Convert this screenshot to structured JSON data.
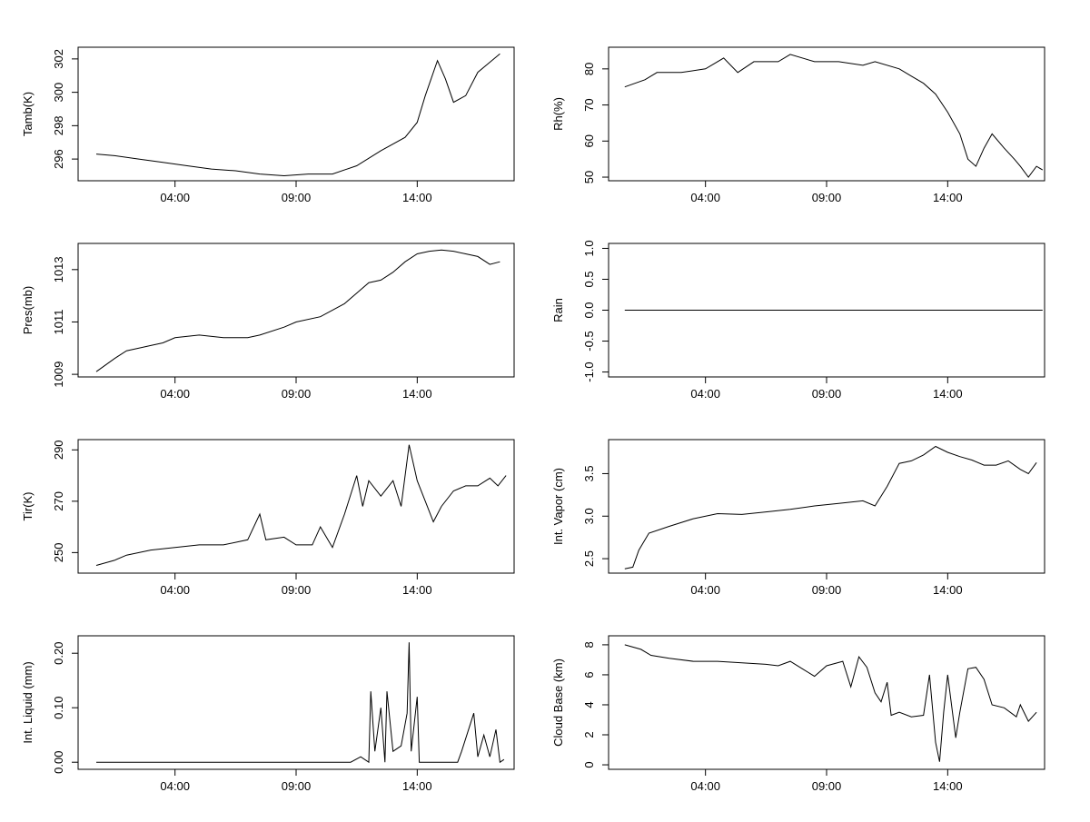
{
  "chart_data": [
    {
      "type": "line",
      "ylabel": "Tamb(K)",
      "xticks": [
        "04:00",
        "09:00",
        "14:00"
      ],
      "yticks": [
        296,
        298,
        300,
        302
      ],
      "xlim": [
        "00:00",
        "18:00"
      ],
      "ylim": [
        294.7,
        302.7
      ],
      "series": [
        {
          "points": [
            [
              "00:45",
              296.3
            ],
            [
              "01:30",
              296.2
            ],
            [
              "02:30",
              296.0
            ],
            [
              "03:30",
              295.8
            ],
            [
              "04:30",
              295.6
            ],
            [
              "05:30",
              295.4
            ],
            [
              "06:30",
              295.3
            ],
            [
              "07:30",
              295.1
            ],
            [
              "08:30",
              295.0
            ],
            [
              "09:30",
              295.1
            ],
            [
              "10:30",
              295.1
            ],
            [
              "11:30",
              295.6
            ],
            [
              "12:30",
              296.5
            ],
            [
              "13:30",
              297.3
            ],
            [
              "14:00",
              298.2
            ],
            [
              "14:20",
              299.8
            ],
            [
              "14:50",
              301.9
            ],
            [
              "15:10",
              300.8
            ],
            [
              "15:30",
              299.4
            ],
            [
              "16:00",
              299.8
            ],
            [
              "16:30",
              301.2
            ],
            [
              "17:00",
              301.8
            ],
            [
              "17:25",
              302.3
            ]
          ]
        }
      ]
    },
    {
      "type": "line",
      "ylabel": "Rh(%)",
      "xticks": [
        "04:00",
        "09:00",
        "14:00"
      ],
      "yticks": [
        50,
        60,
        70,
        80
      ],
      "xlim": [
        "00:00",
        "18:00"
      ],
      "ylim": [
        49,
        86
      ],
      "series": [
        {
          "points": [
            [
              "00:40",
              75
            ],
            [
              "01:30",
              77
            ],
            [
              "02:00",
              79
            ],
            [
              "03:00",
              79
            ],
            [
              "04:00",
              80
            ],
            [
              "04:45",
              83
            ],
            [
              "05:20",
              79
            ],
            [
              "06:00",
              82
            ],
            [
              "07:00",
              82
            ],
            [
              "07:30",
              84
            ],
            [
              "08:30",
              82
            ],
            [
              "09:30",
              82
            ],
            [
              "10:30",
              81
            ],
            [
              "11:00",
              82
            ],
            [
              "12:00",
              80
            ],
            [
              "12:30",
              78
            ],
            [
              "13:00",
              76
            ],
            [
              "13:30",
              73
            ],
            [
              "14:00",
              68
            ],
            [
              "14:30",
              62
            ],
            [
              "14:50",
              55
            ],
            [
              "15:10",
              53
            ],
            [
              "15:30",
              58
            ],
            [
              "15:50",
              62
            ],
            [
              "16:20",
              58
            ],
            [
              "16:45",
              55
            ],
            [
              "17:00",
              53
            ],
            [
              "17:20",
              50
            ],
            [
              "17:40",
              53
            ],
            [
              "17:55",
              52
            ]
          ]
        }
      ]
    },
    {
      "type": "line",
      "ylabel": "Pres(mb)",
      "xticks": [
        "04:00",
        "09:00",
        "14:00"
      ],
      "yticks": [
        1009,
        1011,
        1013
      ],
      "xlim": [
        "00:00",
        "18:00"
      ],
      "ylim": [
        1008.9,
        1014.0
      ],
      "series": [
        {
          "points": [
            [
              "00:45",
              1009.1
            ],
            [
              "01:30",
              1009.6
            ],
            [
              "02:00",
              1009.9
            ],
            [
              "03:00",
              1010.1
            ],
            [
              "03:30",
              1010.2
            ],
            [
              "04:00",
              1010.4
            ],
            [
              "05:00",
              1010.5
            ],
            [
              "06:00",
              1010.4
            ],
            [
              "07:00",
              1010.4
            ],
            [
              "07:30",
              1010.5
            ],
            [
              "08:30",
              1010.8
            ],
            [
              "09:00",
              1011.0
            ],
            [
              "10:00",
              1011.2
            ],
            [
              "11:00",
              1011.7
            ],
            [
              "11:30",
              1012.1
            ],
            [
              "12:00",
              1012.5
            ],
            [
              "12:30",
              1012.6
            ],
            [
              "13:00",
              1012.9
            ],
            [
              "13:30",
              1013.3
            ],
            [
              "14:00",
              1013.6
            ],
            [
              "14:30",
              1013.7
            ],
            [
              "15:00",
              1013.75
            ],
            [
              "15:30",
              1013.7
            ],
            [
              "16:00",
              1013.6
            ],
            [
              "16:30",
              1013.5
            ],
            [
              "17:00",
              1013.2
            ],
            [
              "17:25",
              1013.3
            ]
          ]
        }
      ]
    },
    {
      "type": "line",
      "ylabel": "Rain",
      "xticks": [
        "04:00",
        "09:00",
        "14:00"
      ],
      "yticks": [
        -1.0,
        -0.5,
        0.0,
        0.5,
        1.0
      ],
      "ytick_labels": [
        "-1.0",
        "-0.5",
        "0.0",
        "0.5",
        "1.0"
      ],
      "xlim": [
        "00:00",
        "18:00"
      ],
      "ylim": [
        -1.08,
        1.08
      ],
      "series": [
        {
          "points": [
            [
              "00:40",
              0
            ],
            [
              "17:55",
              0
            ]
          ]
        }
      ]
    },
    {
      "type": "line",
      "ylabel": "Tir(K)",
      "xticks": [
        "04:00",
        "09:00",
        "14:00"
      ],
      "yticks": [
        250,
        270,
        290
      ],
      "xlim": [
        "00:00",
        "18:00"
      ],
      "ylim": [
        242,
        294
      ],
      "series": [
        {
          "points": [
            [
              "00:45",
              245
            ],
            [
              "01:30",
              247
            ],
            [
              "02:00",
              249
            ],
            [
              "03:00",
              251
            ],
            [
              "04:00",
              252
            ],
            [
              "05:00",
              253
            ],
            [
              "06:00",
              253
            ],
            [
              "07:00",
              255
            ],
            [
              "07:30",
              265
            ],
            [
              "07:45",
              255
            ],
            [
              "08:30",
              256
            ],
            [
              "09:00",
              253
            ],
            [
              "09:40",
              253
            ],
            [
              "10:00",
              260
            ],
            [
              "10:30",
              252
            ],
            [
              "11:00",
              265
            ],
            [
              "11:30",
              280
            ],
            [
              "11:45",
              268
            ],
            [
              "12:00",
              278
            ],
            [
              "12:30",
              272
            ],
            [
              "13:00",
              278
            ],
            [
              "13:20",
              268
            ],
            [
              "13:40",
              292
            ],
            [
              "14:00",
              278
            ],
            [
              "14:20",
              270
            ],
            [
              "14:40",
              262
            ],
            [
              "15:00",
              268
            ],
            [
              "15:30",
              274
            ],
            [
              "16:00",
              276
            ],
            [
              "16:30",
              276
            ],
            [
              "17:00",
              279
            ],
            [
              "17:20",
              276
            ],
            [
              "17:40",
              280
            ]
          ]
        }
      ]
    },
    {
      "type": "line",
      "ylabel": "Int. Vapor (cm)",
      "xticks": [
        "04:00",
        "09:00",
        "14:00"
      ],
      "yticks": [
        2.5,
        3.0,
        3.5
      ],
      "ytick_labels": [
        "2.5",
        "3.0",
        "3.5"
      ],
      "xlim": [
        "00:00",
        "18:00"
      ],
      "ylim": [
        2.33,
        3.9
      ],
      "series": [
        {
          "points": [
            [
              "00:40",
              2.38
            ],
            [
              "01:00",
              2.4
            ],
            [
              "01:15",
              2.6
            ],
            [
              "01:40",
              2.8
            ],
            [
              "02:30",
              2.88
            ],
            [
              "03:30",
              2.97
            ],
            [
              "04:30",
              3.03
            ],
            [
              "05:30",
              3.02
            ],
            [
              "06:30",
              3.05
            ],
            [
              "07:30",
              3.08
            ],
            [
              "08:30",
              3.12
            ],
            [
              "09:30",
              3.15
            ],
            [
              "10:30",
              3.18
            ],
            [
              "11:00",
              3.12
            ],
            [
              "11:30",
              3.35
            ],
            [
              "12:00",
              3.62
            ],
            [
              "12:30",
              3.65
            ],
            [
              "13:00",
              3.72
            ],
            [
              "13:30",
              3.82
            ],
            [
              "14:00",
              3.75
            ],
            [
              "14:30",
              3.7
            ],
            [
              "15:00",
              3.66
            ],
            [
              "15:30",
              3.6
            ],
            [
              "16:00",
              3.6
            ],
            [
              "16:30",
              3.65
            ],
            [
              "17:00",
              3.55
            ],
            [
              "17:20",
              3.5
            ],
            [
              "17:40",
              3.63
            ]
          ]
        }
      ]
    },
    {
      "type": "line",
      "ylabel": "Int. Liquid (mm)",
      "xticks": [
        "04:00",
        "09:00",
        "14:00"
      ],
      "yticks": [
        0.0,
        0.1,
        0.2
      ],
      "ytick_labels": [
        "0.00",
        "0.10",
        "0.20"
      ],
      "xlim": [
        "00:00",
        "18:00"
      ],
      "ylim": [
        -0.013,
        0.232
      ],
      "series": [
        {
          "points": [
            [
              "00:45",
              0
            ],
            [
              "11:15",
              0
            ],
            [
              "11:40",
              0.01
            ],
            [
              "12:00",
              0
            ],
            [
              "12:05",
              0.13
            ],
            [
              "12:15",
              0.02
            ],
            [
              "12:30",
              0.1
            ],
            [
              "12:40",
              0
            ],
            [
              "12:45",
              0.13
            ],
            [
              "13:00",
              0.02
            ],
            [
              "13:20",
              0.03
            ],
            [
              "13:35",
              0.09
            ],
            [
              "13:40",
              0.22
            ],
            [
              "13:45",
              0.02
            ],
            [
              "14:00",
              0.12
            ],
            [
              "14:05",
              0
            ],
            [
              "14:30",
              0
            ],
            [
              "15:00",
              0
            ],
            [
              "15:40",
              0
            ],
            [
              "15:50",
              0.02
            ],
            [
              "16:20",
              0.09
            ],
            [
              "16:30",
              0.01
            ],
            [
              "16:45",
              0.05
            ],
            [
              "17:00",
              0.01
            ],
            [
              "17:15",
              0.06
            ],
            [
              "17:25",
              0
            ],
            [
              "17:35",
              0.005
            ]
          ]
        }
      ]
    },
    {
      "type": "line",
      "ylabel": "Cloud Base (km)",
      "xticks": [
        "04:00",
        "09:00",
        "14:00"
      ],
      "yticks": [
        0,
        2,
        4,
        6,
        8
      ],
      "xlim": [
        "00:00",
        "18:00"
      ],
      "ylim": [
        -0.3,
        8.6
      ],
      "series": [
        {
          "points": [
            [
              "00:40",
              8.0
            ],
            [
              "01:20",
              7.7
            ],
            [
              "01:45",
              7.3
            ],
            [
              "02:30",
              7.1
            ],
            [
              "03:30",
              6.9
            ],
            [
              "04:30",
              6.9
            ],
            [
              "05:30",
              6.8
            ],
            [
              "06:30",
              6.7
            ],
            [
              "07:00",
              6.6
            ],
            [
              "07:30",
              6.9
            ],
            [
              "08:00",
              6.4
            ],
            [
              "08:30",
              5.9
            ],
            [
              "09:00",
              6.6
            ],
            [
              "09:40",
              6.9
            ],
            [
              "10:00",
              5.2
            ],
            [
              "10:20",
              7.2
            ],
            [
              "10:40",
              6.5
            ],
            [
              "11:00",
              4.8
            ],
            [
              "11:15",
              4.2
            ],
            [
              "11:30",
              5.5
            ],
            [
              "11:40",
              3.3
            ],
            [
              "12:00",
              3.5
            ],
            [
              "12:30",
              3.2
            ],
            [
              "13:00",
              3.3
            ],
            [
              "13:15",
              6.0
            ],
            [
              "13:30",
              1.5
            ],
            [
              "13:40",
              0.2
            ],
            [
              "13:50",
              3.5
            ],
            [
              "14:00",
              6.0
            ],
            [
              "14:20",
              1.8
            ],
            [
              "14:30",
              3.5
            ],
            [
              "14:50",
              6.4
            ],
            [
              "15:10",
              6.5
            ],
            [
              "15:30",
              5.7
            ],
            [
              "15:50",
              4.0
            ],
            [
              "16:20",
              3.8
            ],
            [
              "16:50",
              3.2
            ],
            [
              "17:00",
              4.0
            ],
            [
              "17:20",
              2.9
            ],
            [
              "17:40",
              3.5
            ]
          ]
        }
      ]
    }
  ]
}
